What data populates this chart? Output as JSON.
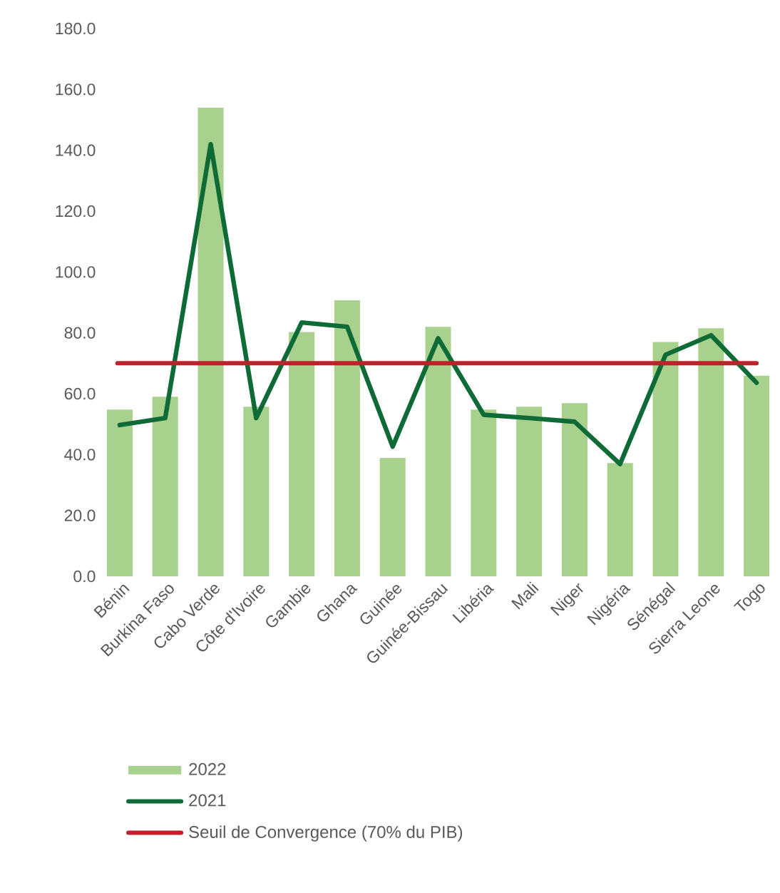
{
  "chart_data": {
    "type": "bar",
    "categories": [
      "Bénin",
      "Burkina Faso",
      "Cabo Verde",
      "Côte d'Ivoire",
      "Gambie",
      "Ghana",
      "Guinée",
      "Guinée-Bissau",
      "Libéria",
      "Mali",
      "Niger",
      "Nigéria",
      "Sénégal",
      "Sierra Leone",
      "Togo"
    ],
    "series": [
      {
        "name": "2022",
        "color": "#a8d18d",
        "values": [
          54.8,
          59,
          154,
          55.7,
          80.3,
          90.7,
          38.9,
          82,
          54.8,
          55.7,
          56.9,
          37.2,
          77,
          81.5,
          65.9
        ]
      },
      {
        "name": "2021",
        "type": "line",
        "color": "#0e6b36",
        "values": [
          49.7,
          52,
          142,
          52,
          83.4,
          82,
          42.6,
          78.2,
          53.1,
          52,
          50.8,
          36.9,
          72.8,
          79.2,
          63.6
        ]
      }
    ],
    "ref_lines": [
      {
        "axis": "y",
        "value": 70,
        "label": "Seuil de Convergence (70% du PIB)",
        "color": "#c0202a"
      }
    ],
    "ylim": [
      0,
      180
    ],
    "yticks": [
      {
        "value": 0,
        "label": "0.0"
      },
      {
        "value": 20,
        "label": "20.0"
      },
      {
        "value": 40,
        "label": "40.0"
      },
      {
        "value": 60,
        "label": "60.0"
      },
      {
        "value": 80,
        "label": "80.0"
      },
      {
        "value": 100,
        "label": "100.0"
      },
      {
        "value": 120,
        "label": "120.0"
      },
      {
        "value": 140,
        "label": "140.0"
      },
      {
        "value": 160,
        "label": "160.0"
      },
      {
        "value": 180,
        "label": "180.0"
      }
    ],
    "grid": false,
    "legend": "bottom"
  }
}
